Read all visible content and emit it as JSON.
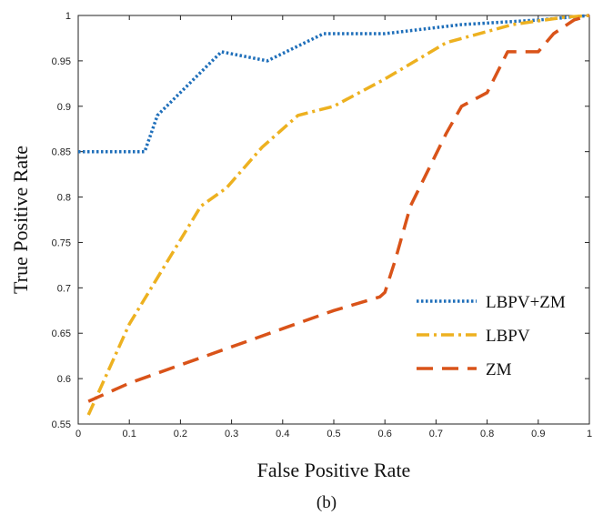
{
  "chart_data": {
    "type": "line",
    "xlabel": "False Positive Rate",
    "ylabel": "True Positive Rate",
    "xlim": [
      0,
      1
    ],
    "ylim": [
      0.55,
      1
    ],
    "x_ticks": [
      "0",
      "0.1",
      "0.2",
      "0.3",
      "0.4",
      "0.5",
      "0.6",
      "0.7",
      "0.8",
      "0.9",
      "1"
    ],
    "y_ticks": [
      "0.55",
      "0.6",
      "0.65",
      "0.7",
      "0.75",
      "0.8",
      "0.85",
      "0.9",
      "0.95",
      "1"
    ],
    "grid": false,
    "legend_position": "lower-right",
    "caption": "(b)",
    "series": [
      {
        "name": "LBPV+ZM",
        "color": "#1f6fba",
        "style": "dotted",
        "x": [
          0,
          0.13,
          0.155,
          0.28,
          0.37,
          0.48,
          0.6,
          0.75,
          0.9,
          1.0
        ],
        "y": [
          0.85,
          0.85,
          0.89,
          0.96,
          0.95,
          0.98,
          0.98,
          0.99,
          0.995,
          1.0
        ]
      },
      {
        "name": "LBPV",
        "color": "#edb120",
        "style": "dashdot",
        "x": [
          0.02,
          0.1,
          0.24,
          0.29,
          0.36,
          0.43,
          0.5,
          0.6,
          0.72,
          0.85,
          0.95,
          1.0
        ],
        "y": [
          0.56,
          0.66,
          0.79,
          0.81,
          0.855,
          0.89,
          0.9,
          0.93,
          0.97,
          0.99,
          0.998,
          1.0
        ]
      },
      {
        "name": "ZM",
        "color": "#d95319",
        "style": "dashed",
        "x": [
          0.02,
          0.1,
          0.2,
          0.3,
          0.4,
          0.5,
          0.59,
          0.6,
          0.62,
          0.65,
          0.72,
          0.75,
          0.8,
          0.84,
          0.86,
          0.88,
          0.9,
          0.93,
          0.97,
          1.0
        ],
        "y": [
          0.575,
          0.595,
          0.615,
          0.635,
          0.655,
          0.675,
          0.69,
          0.695,
          0.73,
          0.79,
          0.87,
          0.9,
          0.915,
          0.96,
          0.96,
          0.96,
          0.96,
          0.98,
          0.995,
          1.0
        ]
      }
    ]
  }
}
